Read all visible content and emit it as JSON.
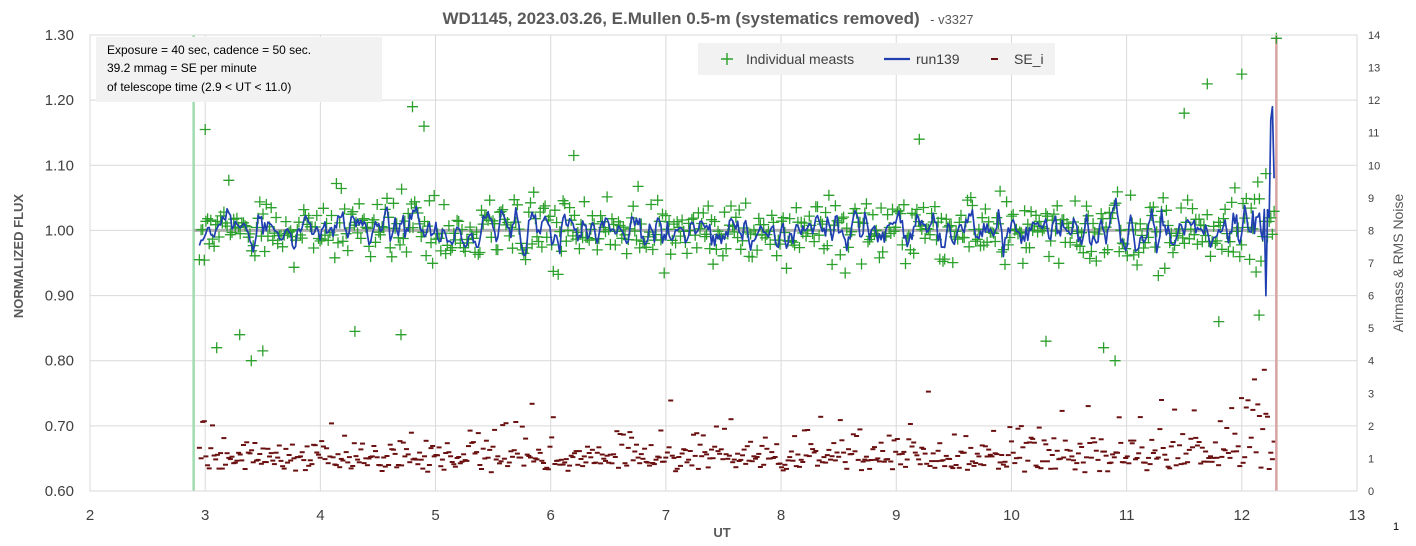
{
  "chart_data": {
    "type": "scatter",
    "title": "WD1145, 2023.03.26, E.Mullen 0.5-m (systematics removed)",
    "title_suffix": "- v3327",
    "xlabel": "UT",
    "ylabel": "NORMALIZED FLUX",
    "y2label": "Airmass & RMS Noise",
    "xlim": [
      2,
      13
    ],
    "ylim": [
      0.6,
      1.3
    ],
    "y2lim": [
      0,
      14
    ],
    "x_ticks": [
      "2",
      "3",
      "4",
      "5",
      "6",
      "7",
      "8",
      "9",
      "10",
      "11",
      "12",
      "13"
    ],
    "y_ticks": [
      "0.60",
      "0.70",
      "0.80",
      "0.90",
      "1.00",
      "1.10",
      "1.20",
      "1.30"
    ],
    "y2_ticks": [
      "0",
      "1",
      "2",
      "3",
      "4",
      "5",
      "6",
      "7",
      "8",
      "9",
      "10",
      "11",
      "12",
      "13",
      "14"
    ],
    "grid": true,
    "legend_position": "top-center",
    "annotation_lines": [
      "Exposure = 40 sec, cadence = 50 sec.",
      "39.2 mmag = SE per minute",
      "of telescope time (2.9 < UT < 11.0)"
    ],
    "ut_start": 2.9,
    "ut_end": 12.3,
    "reference_level": 1.0,
    "series": [
      {
        "name": "Individual measts",
        "kind": "scatter",
        "marker": "+",
        "color": "#2ca02c",
        "count": 660
      },
      {
        "name": "run139",
        "kind": "line",
        "color": "#1f3fb0"
      },
      {
        "name": "SE_i",
        "kind": "scatter",
        "marker": "dash",
        "color": "#6b1010",
        "axis": "right"
      }
    ],
    "outliers": [
      {
        "x": 3.0,
        "y": 1.155
      },
      {
        "x": 3.1,
        "y": 0.82
      },
      {
        "x": 3.3,
        "y": 0.84
      },
      {
        "x": 3.4,
        "y": 0.8
      },
      {
        "x": 3.5,
        "y": 0.815
      },
      {
        "x": 4.8,
        "y": 1.19
      },
      {
        "x": 4.9,
        "y": 1.16
      },
      {
        "x": 4.7,
        "y": 0.84
      },
      {
        "x": 4.3,
        "y": 0.845
      },
      {
        "x": 6.2,
        "y": 1.115
      },
      {
        "x": 9.2,
        "y": 1.14
      },
      {
        "x": 10.3,
        "y": 0.83
      },
      {
        "x": 10.8,
        "y": 0.82
      },
      {
        "x": 10.9,
        "y": 0.8
      },
      {
        "x": 11.5,
        "y": 1.18
      },
      {
        "x": 11.7,
        "y": 1.225
      },
      {
        "x": 12.0,
        "y": 1.24
      },
      {
        "x": 12.3,
        "y": 1.295
      },
      {
        "x": 12.15,
        "y": 0.87
      },
      {
        "x": 11.8,
        "y": 0.86
      }
    ]
  },
  "page_corner_label": "1"
}
